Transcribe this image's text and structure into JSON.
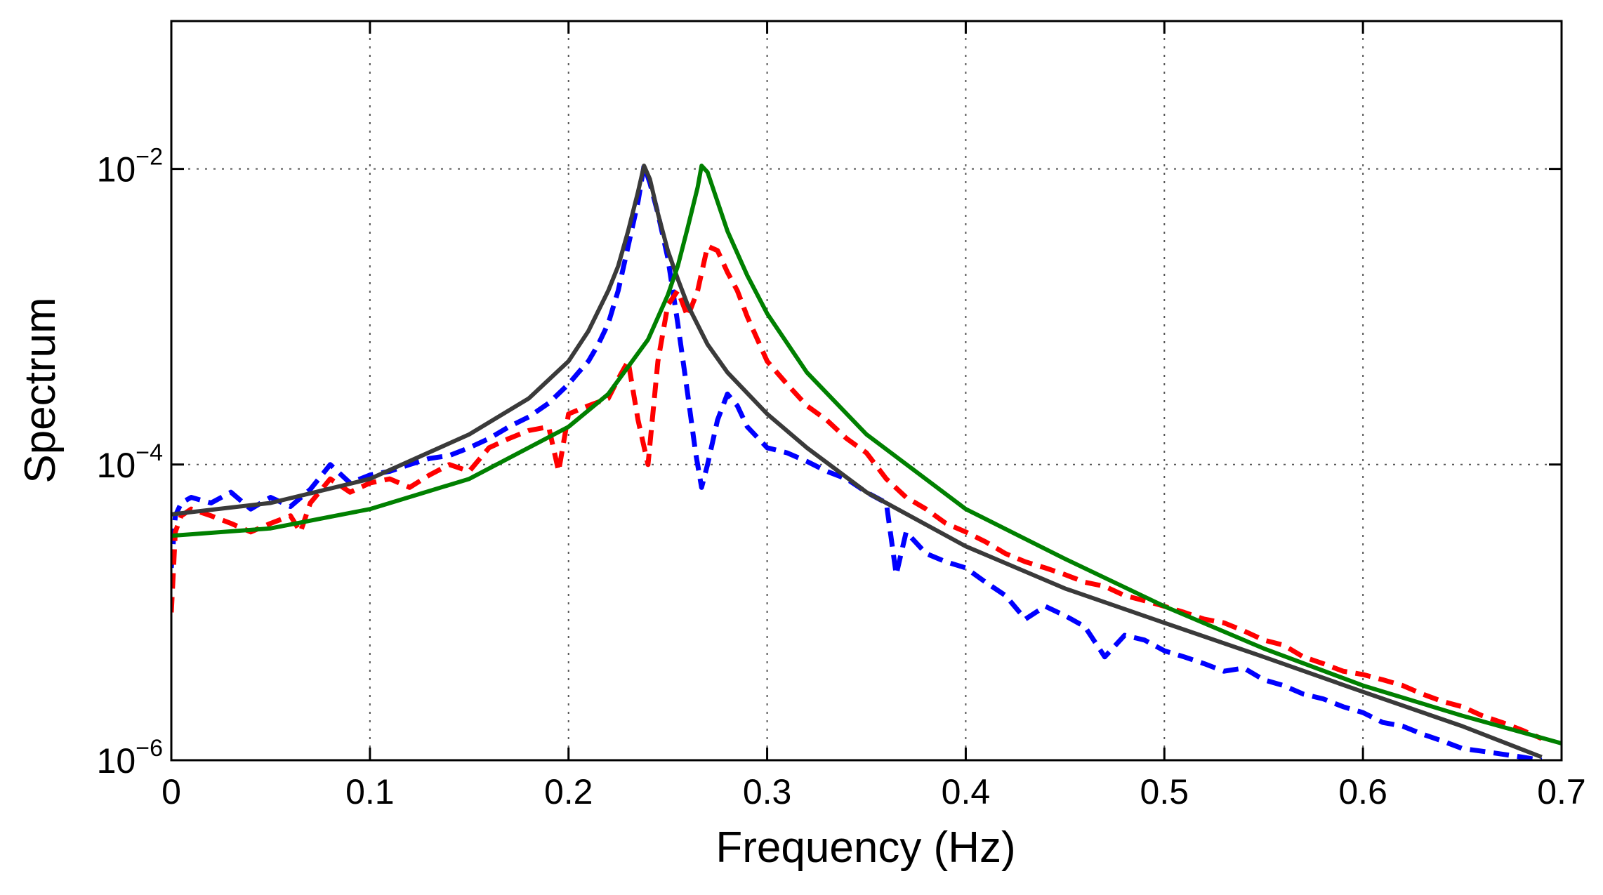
{
  "chart_data": {
    "type": "line",
    "title": "",
    "xlabel": "Frequency (Hz)",
    "ylabel": "Spectrum",
    "xlim": [
      0,
      0.7
    ],
    "ylim": [
      1e-06,
      0.1
    ],
    "yscale": "log",
    "grid": true,
    "xticks": [
      0,
      0.1,
      0.2,
      0.3,
      0.4,
      0.5,
      0.6,
      0.7
    ],
    "xtick_labels": [
      "0",
      "0.1",
      "0.2",
      "0.3",
      "0.4",
      "0.5",
      "0.6",
      "0.7"
    ],
    "yticks": [
      1e-06,
      0.0001,
      0.01
    ],
    "ytick_labels": [
      {
        "base": "10",
        "exp": "−6"
      },
      {
        "base": "10",
        "exp": "−4"
      },
      {
        "base": "10",
        "exp": "−2"
      }
    ],
    "series": [
      {
        "name": "blue dashed",
        "color": "#0000ff",
        "style": "dashed",
        "x": [
          0,
          0.002,
          0.005,
          0.01,
          0.02,
          0.03,
          0.04,
          0.05,
          0.06,
          0.07,
          0.08,
          0.09,
          0.1,
          0.11,
          0.12,
          0.13,
          0.14,
          0.15,
          0.16,
          0.17,
          0.18,
          0.19,
          0.2,
          0.205,
          0.21,
          0.215,
          0.22,
          0.225,
          0.23,
          0.235,
          0.238,
          0.241,
          0.245,
          0.25,
          0.255,
          0.26,
          0.264,
          0.267,
          0.27,
          0.275,
          0.28,
          0.285,
          0.29,
          0.3,
          0.31,
          0.32,
          0.33,
          0.34,
          0.35,
          0.36,
          0.365,
          0.37,
          0.38,
          0.39,
          0.4,
          0.41,
          0.42,
          0.43,
          0.44,
          0.45,
          0.46,
          0.47,
          0.48,
          0.49,
          0.5,
          0.51,
          0.52,
          0.53,
          0.54,
          0.55,
          0.56,
          0.57,
          0.58,
          0.59,
          0.6,
          0.61,
          0.62,
          0.63,
          0.64,
          0.65,
          0.66,
          0.67,
          0.68,
          0.69
        ],
        "y": [
          2e-05,
          4.5e-05,
          5.5e-05,
          6e-05,
          5.5e-05,
          6.5e-05,
          5e-05,
          6e-05,
          5.2e-05,
          6.8e-05,
          0.0001,
          7.5e-05,
          8.5e-05,
          9e-05,
          0.0001,
          0.00011,
          0.000115,
          0.00013,
          0.00015,
          0.00018,
          0.00021,
          0.00026,
          0.00035,
          0.00042,
          0.0005,
          0.00065,
          0.0009,
          0.0015,
          0.003,
          0.006,
          0.0105,
          0.008,
          0.005,
          0.0025,
          0.0009,
          0.0003,
          0.00012,
          7e-05,
          0.0001,
          0.0002,
          0.0003,
          0.00025,
          0.00018,
          0.00013,
          0.00012,
          0.000105,
          9e-05,
          8e-05,
          6.5e-05,
          5.5e-05,
          1.8e-05,
          3.5e-05,
          2.5e-05,
          2.2e-05,
          2e-05,
          1.6e-05,
          1.3e-05,
          9e-06,
          1.1e-05,
          9.5e-06,
          8e-06,
          5e-06,
          7e-06,
          6.5e-06,
          5.5e-06,
          5e-06,
          4.5e-06,
          4e-06,
          4.2e-06,
          3.5e-06,
          3.2e-06,
          2.8e-06,
          2.6e-06,
          2.3e-06,
          2.1e-06,
          1.8e-06,
          1.7e-06,
          1.5e-06,
          1.35e-06,
          1.2e-06,
          1.15e-06,
          1.1e-06,
          1.05e-06,
          1e-06
        ]
      },
      {
        "name": "red dashed",
        "color": "#ff0000",
        "style": "dashed",
        "x": [
          0,
          0.002,
          0.005,
          0.01,
          0.02,
          0.03,
          0.04,
          0.05,
          0.06,
          0.065,
          0.07,
          0.08,
          0.09,
          0.1,
          0.11,
          0.12,
          0.13,
          0.14,
          0.15,
          0.16,
          0.17,
          0.18,
          0.19,
          0.195,
          0.2,
          0.21,
          0.22,
          0.225,
          0.23,
          0.235,
          0.24,
          0.245,
          0.25,
          0.255,
          0.26,
          0.265,
          0.27,
          0.275,
          0.28,
          0.285,
          0.29,
          0.3,
          0.31,
          0.32,
          0.33,
          0.34,
          0.35,
          0.36,
          0.37,
          0.38,
          0.39,
          0.4,
          0.41,
          0.42,
          0.43,
          0.44,
          0.45,
          0.46,
          0.47,
          0.48,
          0.49,
          0.5,
          0.51,
          0.52,
          0.53,
          0.54,
          0.55,
          0.56,
          0.57,
          0.58,
          0.59,
          0.6,
          0.61,
          0.62,
          0.63,
          0.64,
          0.65,
          0.66,
          0.67,
          0.68,
          0.69
        ],
        "y": [
          1e-05,
          3.5e-05,
          4.5e-05,
          5e-05,
          4.5e-05,
          4e-05,
          3.5e-05,
          4e-05,
          4.5e-05,
          3.5e-05,
          5.5e-05,
          8e-05,
          6.5e-05,
          7.5e-05,
          8e-05,
          7e-05,
          8.5e-05,
          0.0001,
          9e-05,
          0.00013,
          0.00015,
          0.00017,
          0.00018,
          9e-05,
          0.00022,
          0.00025,
          0.00028,
          0.00038,
          0.0005,
          0.0002,
          0.0001,
          0.0005,
          0.0012,
          0.0015,
          0.001,
          0.0015,
          0.003,
          0.0028,
          0.002,
          0.0015,
          0.001,
          0.0005,
          0.00035,
          0.00025,
          0.0002,
          0.00015,
          0.00012,
          8e-05,
          6e-05,
          5e-05,
          4e-05,
          3.5e-05,
          3e-05,
          2.5e-05,
          2.2e-05,
          2e-05,
          1.8e-05,
          1.6e-05,
          1.5e-05,
          1.3e-05,
          1.2e-05,
          1.1e-05,
          1e-05,
          9e-06,
          8.5e-06,
          7.5e-06,
          6.5e-06,
          6e-06,
          5e-06,
          4.5e-06,
          4e-06,
          3.8e-06,
          3.5e-06,
          3.2e-06,
          2.8e-06,
          2.5e-06,
          2.3e-06,
          2e-06,
          1.8e-06,
          1.6e-06,
          1.4e-06
        ]
      },
      {
        "name": "dark gray solid",
        "color": "#3a3a3a",
        "style": "solid",
        "x": [
          0,
          0.05,
          0.1,
          0.15,
          0.18,
          0.2,
          0.21,
          0.22,
          0.225,
          0.23,
          0.235,
          0.238,
          0.241,
          0.245,
          0.25,
          0.255,
          0.26,
          0.27,
          0.28,
          0.3,
          0.32,
          0.35,
          0.4,
          0.45,
          0.5,
          0.55,
          0.6,
          0.65,
          0.69
        ],
        "y": [
          4.6e-05,
          5.5e-05,
          8e-05,
          0.00016,
          0.00028,
          0.0005,
          0.0008,
          0.0015,
          0.0022,
          0.0038,
          0.007,
          0.0105,
          0.0085,
          0.005,
          0.0028,
          0.0018,
          0.0012,
          0.00065,
          0.00042,
          0.00022,
          0.00013,
          6.5e-05,
          2.8e-05,
          1.45e-05,
          8.5e-06,
          5e-06,
          2.9e-06,
          1.7e-06,
          1.05e-06
        ]
      },
      {
        "name": "green solid",
        "color": "#008000",
        "style": "solid",
        "x": [
          0,
          0.05,
          0.1,
          0.15,
          0.2,
          0.22,
          0.24,
          0.25,
          0.255,
          0.26,
          0.265,
          0.267,
          0.27,
          0.275,
          0.28,
          0.29,
          0.3,
          0.32,
          0.35,
          0.4,
          0.45,
          0.5,
          0.55,
          0.6,
          0.65,
          0.7
        ],
        "y": [
          3.3e-05,
          3.7e-05,
          5e-05,
          8e-05,
          0.00018,
          0.0003,
          0.0007,
          0.0014,
          0.0022,
          0.004,
          0.0075,
          0.0105,
          0.0095,
          0.006,
          0.0038,
          0.0019,
          0.00105,
          0.00042,
          0.00016,
          5e-05,
          2.3e-05,
          1.1e-05,
          5.7e-06,
          3.2e-06,
          2e-06,
          1.3e-06
        ]
      }
    ]
  }
}
